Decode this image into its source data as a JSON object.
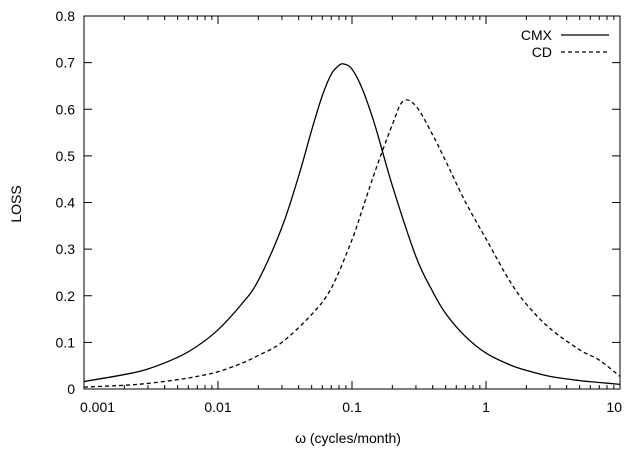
{
  "chart_data": {
    "type": "line",
    "title": "",
    "xlabel": "ω (cycles/month)",
    "ylabel": "LOSS",
    "xscale": "log",
    "xlim": [
      0.001,
      10
    ],
    "ylim": [
      0,
      0.8
    ],
    "grid": false,
    "legend_position": "top-right",
    "x_ticks": [
      {
        "value": 0.001,
        "label": "0.001"
      },
      {
        "value": 0.01,
        "label": "0.01"
      },
      {
        "value": 0.1,
        "label": "0.1"
      },
      {
        "value": 1,
        "label": "1"
      },
      {
        "value": 10,
        "label": "10"
      }
    ],
    "y_ticks": [
      {
        "value": 0,
        "label": "0"
      },
      {
        "value": 0.1,
        "label": "0.1"
      },
      {
        "value": 0.2,
        "label": "0.2"
      },
      {
        "value": 0.3,
        "label": "0.3"
      },
      {
        "value": 0.4,
        "label": "0.4"
      },
      {
        "value": 0.5,
        "label": "0.5"
      },
      {
        "value": 0.6,
        "label": "0.6"
      },
      {
        "value": 0.7,
        "label": "0.7"
      },
      {
        "value": 0.8,
        "label": "0.8"
      }
    ],
    "series": [
      {
        "name": "CMX",
        "style": "solid",
        "color": "#000000",
        "x": [
          0.001,
          0.002,
          0.003,
          0.005,
          0.007,
          0.01,
          0.015,
          0.02,
          0.03,
          0.04,
          0.05,
          0.06,
          0.07,
          0.08,
          0.087,
          0.1,
          0.12,
          0.15,
          0.2,
          0.3,
          0.4,
          0.5,
          0.7,
          1,
          1.5,
          2,
          3,
          5,
          7,
          10
        ],
        "y": [
          0.016,
          0.031,
          0.043,
          0.068,
          0.092,
          0.127,
          0.182,
          0.233,
          0.347,
          0.457,
          0.555,
          0.629,
          0.675,
          0.694,
          0.697,
          0.686,
          0.642,
          0.561,
          0.436,
          0.284,
          0.209,
          0.162,
          0.113,
          0.077,
          0.052,
          0.04,
          0.027,
          0.018,
          0.014,
          0.01
        ]
      },
      {
        "name": "CD",
        "style": "dashed",
        "color": "#000000",
        "x": [
          0.001,
          0.002,
          0.003,
          0.005,
          0.007,
          0.01,
          0.015,
          0.02,
          0.03,
          0.05,
          0.07,
          0.1,
          0.12,
          0.15,
          0.2,
          0.24,
          0.3,
          0.4,
          0.5,
          0.7,
          1,
          1.5,
          2,
          3,
          5,
          7,
          10
        ],
        "y": [
          0.004,
          0.008,
          0.012,
          0.02,
          0.027,
          0.037,
          0.055,
          0.072,
          0.1,
          0.16,
          0.216,
          0.32,
          0.387,
          0.47,
          0.567,
          0.617,
          0.607,
          0.545,
          0.489,
          0.402,
          0.322,
          0.232,
          0.182,
          0.13,
          0.084,
          0.062,
          0.027
        ]
      }
    ]
  }
}
